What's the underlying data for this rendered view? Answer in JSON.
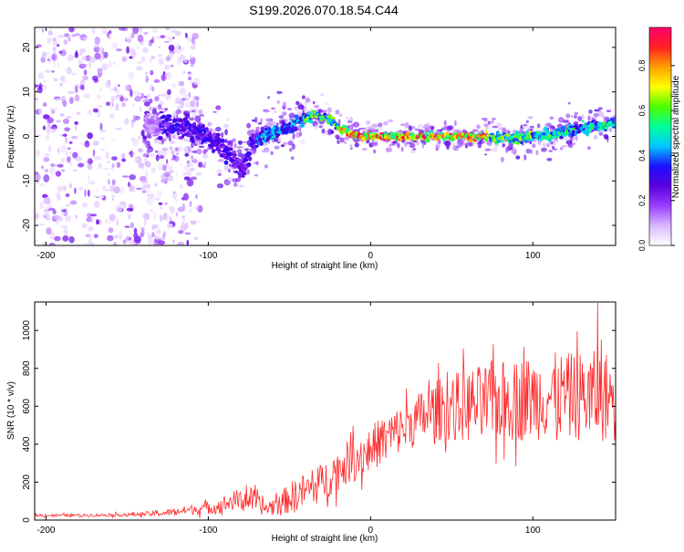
{
  "figure_title": "S199.2026.070.18.54.C44",
  "colors": {
    "snr_line": "#ff2a2a",
    "axis": "#000000",
    "colormap": [
      "#ffffff",
      "#d9b8ff",
      "#9a3cff",
      "#5a00e0",
      "#1c10ff",
      "#00c8ff",
      "#00ff9a",
      "#4dff00",
      "#ffff00",
      "#ffa000",
      "#ff2020",
      "#ff006e"
    ]
  },
  "chart_data": [
    {
      "type": "heatmap",
      "title": "",
      "xlabel": "Height of straight line (km)",
      "ylabel": "Frequency (Hz)",
      "xlim": [
        -207,
        151
      ],
      "ylim": [
        -24.5,
        24.5
      ],
      "xticks": [
        -200,
        -100,
        0,
        100
      ],
      "yticks": [
        20,
        10,
        0,
        -10,
        -20
      ],
      "colorbar": {
        "label": "Normalized spectral amplitude",
        "range": [
          0,
          0.97
        ],
        "ticks": [
          0.0,
          0.2,
          0.4,
          0.6,
          0.8
        ]
      },
      "ridge": {
        "description": "dominant frequency track vs height (km, Hz)",
        "points": [
          [
            -130,
            3
          ],
          [
            -115,
            2
          ],
          [
            -100,
            0
          ],
          [
            -90,
            -3
          ],
          [
            -83,
            -6
          ],
          [
            -78,
            -7
          ],
          [
            -72,
            -1
          ],
          [
            -60,
            1
          ],
          [
            -50,
            2
          ],
          [
            -40,
            4
          ],
          [
            -33,
            5
          ],
          [
            -26,
            4
          ],
          [
            -20,
            2
          ],
          [
            -10,
            0
          ],
          [
            0,
            0
          ],
          [
            20,
            0
          ],
          [
            40,
            0
          ],
          [
            60,
            0
          ],
          [
            75,
            0
          ],
          [
            90,
            -0.5
          ],
          [
            100,
            0
          ],
          [
            110,
            0
          ],
          [
            120,
            1
          ],
          [
            135,
            2
          ],
          [
            151,
            3
          ]
        ]
      },
      "scatter_region": {
        "x_range": [
          -207,
          -130
        ],
        "y_range": [
          -24.5,
          24.5
        ]
      }
    },
    {
      "type": "line",
      "title": "",
      "xlabel": "Height of straight line (km)",
      "ylabel": "SNR (10 * v/v)",
      "xlim": [
        -207,
        151
      ],
      "ylim": [
        0,
        1150
      ],
      "xticks": [
        -200,
        -100,
        0,
        100
      ],
      "yticks": [
        0,
        200,
        400,
        600,
        800,
        1000
      ],
      "series": [
        {
          "name": "SNR",
          "envelope": {
            "description": "smoothed mean and noise amplitude of the SNR trace vs height",
            "x": [
              -207,
              -180,
              -150,
              -130,
              -110,
              -95,
              -85,
              -75,
              -65,
              -55,
              -45,
              -35,
              -25,
              -15,
              -5,
              5,
              15,
              25,
              35,
              45,
              55,
              65,
              75,
              85,
              95,
              105,
              115,
              125,
              135,
              151
            ],
            "mean": [
              25,
              25,
              28,
              35,
              55,
              70,
              100,
              115,
              60,
              90,
              140,
              170,
              230,
              300,
              340,
              410,
              460,
              510,
              560,
              590,
              600,
              610,
              620,
              630,
              640,
              650,
              660,
              650,
              655,
              650
            ],
            "spread": [
              10,
              10,
              12,
              20,
              35,
              50,
              70,
              90,
              50,
              90,
              120,
              130,
              140,
              150,
              160,
              170,
              170,
              180,
              200,
              230,
              250,
              270,
              280,
              290,
              300,
              300,
              300,
              310,
              320,
              320
            ]
          },
          "peak": {
            "x": 140,
            "y": 1145
          }
        }
      ]
    }
  ]
}
